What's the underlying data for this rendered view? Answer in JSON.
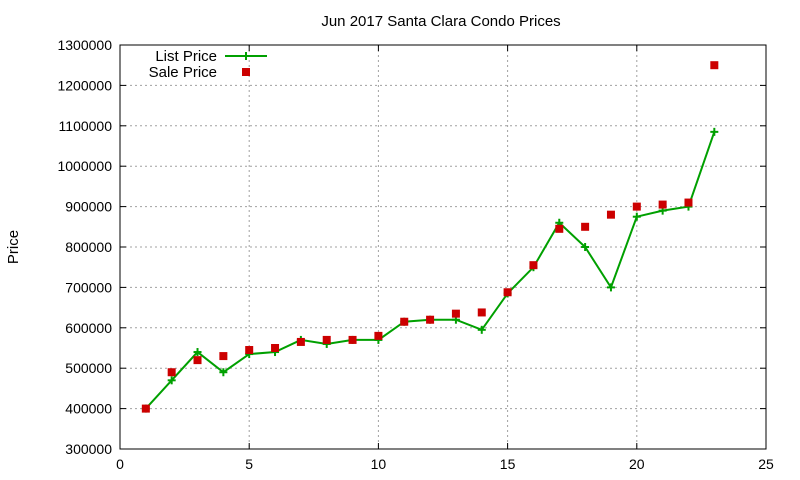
{
  "chart_data": {
    "type": "line",
    "title": "Jun 2017 Santa Clara Condo Prices",
    "xlabel": "",
    "ylabel": "Price",
    "xlim": [
      0,
      25
    ],
    "ylim": [
      300000,
      1300000
    ],
    "x_ticks": [
      "0",
      "5",
      "10",
      "15",
      "20",
      "25"
    ],
    "y_ticks": [
      "300000",
      "400000",
      "500000",
      "600000",
      "700000",
      "800000",
      "900000",
      "1000000",
      "1100000",
      "1200000",
      "1300000"
    ],
    "grid": true,
    "legend_position": "top-left",
    "series": [
      {
        "name": "List Price",
        "style": "line+cross",
        "color": "#00a000",
        "points": [
          [
            1,
            400000
          ],
          [
            2,
            470000
          ],
          [
            3,
            540000
          ],
          [
            4,
            490000
          ],
          [
            5,
            535000
          ],
          [
            6,
            540000
          ],
          [
            7,
            570000
          ],
          [
            8,
            560000
          ],
          [
            9,
            570000
          ],
          [
            10,
            570000
          ],
          [
            11,
            615000
          ],
          [
            12,
            620000
          ],
          [
            13,
            620000
          ],
          [
            14,
            595000
          ],
          [
            15,
            685000
          ],
          [
            16,
            750000
          ],
          [
            17,
            860000
          ],
          [
            18,
            800000
          ],
          [
            19,
            700000
          ],
          [
            20,
            875000
          ],
          [
            21,
            890000
          ],
          [
            22,
            900000
          ],
          [
            23,
            1085000
          ]
        ]
      },
      {
        "name": "Sale Price",
        "style": "square-markers",
        "color": "#cc0000",
        "points": [
          [
            1,
            400000
          ],
          [
            2,
            490000
          ],
          [
            3,
            520000
          ],
          [
            4,
            530000
          ],
          [
            5,
            545000
          ],
          [
            6,
            550000
          ],
          [
            7,
            565000
          ],
          [
            8,
            570000
          ],
          [
            9,
            570000
          ],
          [
            10,
            580000
          ],
          [
            11,
            615000
          ],
          [
            12,
            620000
          ],
          [
            13,
            635000
          ],
          [
            14,
            638000
          ],
          [
            15,
            688000
          ],
          [
            16,
            755000
          ],
          [
            17,
            845000
          ],
          [
            18,
            850000
          ],
          [
            19,
            880000
          ],
          [
            20,
            900000
          ],
          [
            21,
            905000
          ],
          [
            22,
            910000
          ],
          [
            23,
            1250000
          ]
        ]
      }
    ]
  }
}
